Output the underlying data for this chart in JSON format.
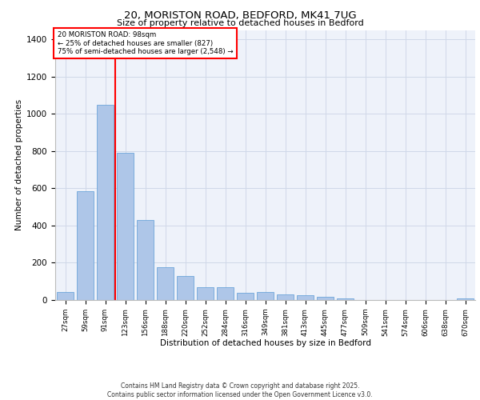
{
  "title_line1": "20, MORISTON ROAD, BEDFORD, MK41 7UG",
  "title_line2": "Size of property relative to detached houses in Bedford",
  "xlabel": "Distribution of detached houses by size in Bedford",
  "ylabel": "Number of detached properties",
  "categories": [
    "27sqm",
    "59sqm",
    "91sqm",
    "123sqm",
    "156sqm",
    "188sqm",
    "220sqm",
    "252sqm",
    "284sqm",
    "316sqm",
    "349sqm",
    "381sqm",
    "413sqm",
    "445sqm",
    "477sqm",
    "509sqm",
    "541sqm",
    "574sqm",
    "606sqm",
    "638sqm",
    "670sqm"
  ],
  "values": [
    45,
    585,
    1050,
    790,
    430,
    178,
    128,
    68,
    68,
    38,
    45,
    28,
    25,
    18,
    10,
    0,
    0,
    0,
    0,
    0,
    10
  ],
  "bar_color": "#aec6e8",
  "bar_edge_color": "#5b9bd5",
  "red_line_x": 2,
  "red_line_label": "20 MORISTON ROAD: 98sqm",
  "annotation_line2": "← 25% of detached houses are smaller (827)",
  "annotation_line3": "75% of semi-detached houses are larger (2,548) →",
  "ylim": [
    0,
    1450
  ],
  "yticks": [
    0,
    200,
    400,
    600,
    800,
    1000,
    1200,
    1400
  ],
  "grid_color": "#d0d8e8",
  "background_color": "#eef2fa",
  "footer_line1": "Contains HM Land Registry data © Crown copyright and database right 2025.",
  "footer_line2": "Contains public sector information licensed under the Open Government Licence v3.0."
}
